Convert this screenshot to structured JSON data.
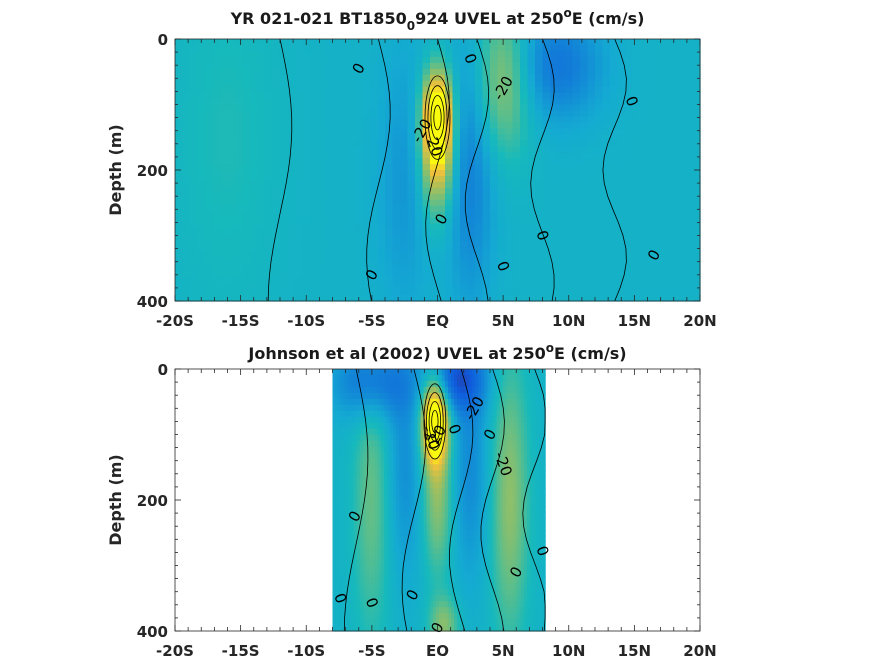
{
  "chart_data": [
    {
      "type": "heatmap",
      "title_main": "YR 021-021 BT1850",
      "title_sub": "0",
      "title_rest": "924 UVEL at 250",
      "title_deg": "o",
      "title_end": "E (cm/s)",
      "ylabel": "Depth (m)",
      "xlabel": "",
      "xlim": [
        -20,
        20
      ],
      "ylim": [
        400,
        0
      ],
      "x_ticks": [
        -20,
        -15,
        -10,
        -5,
        0,
        5,
        10,
        15,
        20
      ],
      "x_tick_labels": [
        "-20S",
        "-15S",
        "-10S",
        "-5S",
        "EQ",
        "5N",
        "10N",
        "15N",
        "20N"
      ],
      "y_ticks": [
        0,
        200,
        400
      ],
      "y_tick_labels": [
        "0",
        "200",
        "400"
      ],
      "data_extent": [
        -20,
        20
      ],
      "features": [
        {
          "lat": 0,
          "depth": 120,
          "value": 90,
          "sx": 0.8,
          "sd": 50
        },
        {
          "lat": 0,
          "depth": 200,
          "value": 40,
          "sx": 0.9,
          "sd": 60
        },
        {
          "lat": 5,
          "depth": 60,
          "value": 35,
          "sx": 1.6,
          "sd": 80
        },
        {
          "lat": 2.5,
          "depth": 200,
          "value": -25,
          "sx": 1.3,
          "sd": 150
        },
        {
          "lat": -2.5,
          "depth": 220,
          "value": -15,
          "sx": 1.5,
          "sd": 150
        },
        {
          "lat": 9,
          "depth": 40,
          "value": -30,
          "sx": 2.5,
          "sd": 60
        },
        {
          "lat": -16,
          "depth": 150,
          "value": 8,
          "sx": 3.0,
          "sd": 200
        }
      ],
      "contour_labels": [
        {
          "text": "0",
          "lat": -6,
          "depth": 45
        },
        {
          "text": "0",
          "lat": 2.5,
          "depth": 30
        },
        {
          "text": "-20",
          "lat": 5,
          "depth": 75
        },
        {
          "text": "0",
          "lat": 14.8,
          "depth": 95
        },
        {
          "text": "-20",
          "lat": -1.2,
          "depth": 140
        },
        {
          "text": "20",
          "lat": -0.2,
          "depth": 165
        },
        {
          "text": "0",
          "lat": 0.3,
          "depth": 275
        },
        {
          "text": "0",
          "lat": 8,
          "depth": 300
        },
        {
          "text": "0",
          "lat": 16.5,
          "depth": 330
        },
        {
          "text": "0",
          "lat": 5,
          "depth": 347
        },
        {
          "text": "0",
          "lat": -5,
          "depth": 360
        }
      ],
      "grid": false
    },
    {
      "type": "heatmap",
      "title_main": "Johnson et al (2002) UVEL at 250",
      "title_sub": "",
      "title_rest": "",
      "title_deg": "o",
      "title_end": "E (cm/s)",
      "ylabel": "Depth (m)",
      "xlabel": "",
      "xlim": [
        -20,
        20
      ],
      "ylim": [
        400,
        0
      ],
      "x_ticks": [
        -20,
        -15,
        -10,
        -5,
        0,
        5,
        10,
        15,
        20
      ],
      "x_tick_labels": [
        "-20S",
        "-15S",
        "-10S",
        "-5S",
        "EQ",
        "5N",
        "10N",
        "15N",
        "20N"
      ],
      "y_ticks": [
        0,
        200,
        400
      ],
      "y_tick_labels": [
        "0",
        "200",
        "400"
      ],
      "data_extent": [
        -8,
        8.2
      ],
      "features": [
        {
          "lat": -0.2,
          "depth": 80,
          "value": 95,
          "sx": 0.7,
          "sd": 45
        },
        {
          "lat": 0,
          "depth": 200,
          "value": 30,
          "sx": 0.8,
          "sd": 80
        },
        {
          "lat": 5.5,
          "depth": 200,
          "value": 30,
          "sx": 1.0,
          "sd": 150
        },
        {
          "lat": -5,
          "depth": 200,
          "value": 22,
          "sx": 1.0,
          "sd": 150
        },
        {
          "lat": 1.5,
          "depth": 15,
          "value": -45,
          "sx": 1.5,
          "sd": 35
        },
        {
          "lat": -5,
          "depth": 20,
          "value": -35,
          "sx": 2.0,
          "sd": 40
        },
        {
          "lat": 2.5,
          "depth": 150,
          "value": -20,
          "sx": 1.0,
          "sd": 120
        },
        {
          "lat": -2.5,
          "depth": 150,
          "value": -18,
          "sx": 1.0,
          "sd": 120
        },
        {
          "lat": 0.5,
          "depth": 390,
          "value": 28,
          "sx": 0.8,
          "sd": 30
        }
      ],
      "contour_labels": [
        {
          "text": "-20",
          "lat": 2.8,
          "depth": 60
        },
        {
          "text": "0",
          "lat": 1.3,
          "depth": 92
        },
        {
          "text": "0",
          "lat": 4,
          "depth": 100
        },
        {
          "text": "-20",
          "lat": -0.5,
          "depth": 105
        },
        {
          "text": "20",
          "lat": 0,
          "depth": 100
        },
        {
          "text": "-20",
          "lat": 5,
          "depth": 145
        },
        {
          "text": "0",
          "lat": -6.3,
          "depth": 225
        },
        {
          "text": "0",
          "lat": 8,
          "depth": 278
        },
        {
          "text": "0",
          "lat": 6,
          "depth": 310
        },
        {
          "text": "0",
          "lat": -7.4,
          "depth": 350
        },
        {
          "text": "0",
          "lat": -1.9,
          "depth": 345
        },
        {
          "text": "0",
          "lat": -5,
          "depth": 357
        },
        {
          "text": "0",
          "lat": 0,
          "depth": 395
        }
      ],
      "grid": false
    }
  ]
}
